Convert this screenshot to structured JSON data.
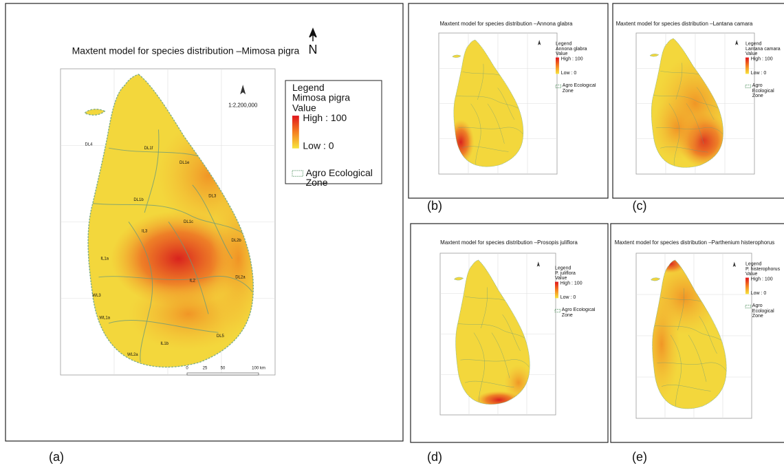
{
  "panels": [
    {
      "label": "(a)",
      "title": "Maxtent model for species distribution –Mimosa pigra",
      "north": "N",
      "scale": "1:2,200,000",
      "legend": {
        "heading": "Legend",
        "species": "Mimosa pigra",
        "value": "Value",
        "high": "High : 100",
        "low": "Low : 0",
        "zone": "Agro Ecological Zone"
      },
      "scale_bar": [
        "0",
        "25",
        "50",
        "100 km"
      ],
      "zones": [
        "DL1e",
        "DL1f",
        "DL1b",
        "DL1c",
        "DL2b",
        "DL2a",
        "DL3",
        "DL4",
        "IL3",
        "IL1a",
        "IL2",
        "WL3",
        "WL1a",
        "WL2a",
        "DL5",
        "IL1b"
      ]
    },
    {
      "label": "(b)",
      "title": "Maxtent model for species distribution –Annona glabra",
      "legend": {
        "heading": "Legend",
        "species": "Annona glabra",
        "value": "Value",
        "high": "High : 100",
        "low": "Low : 0",
        "zone": "Agro Ecological Zone"
      }
    },
    {
      "label": "(c)",
      "title": "Maxtent model for species distribution –Lantana camara",
      "legend": {
        "heading": "Legend",
        "species": "Lantana camara",
        "value": "Value",
        "high": "High : 100",
        "low": "Low : 0",
        "zone": "Agro Ecological Zone"
      }
    },
    {
      "label": "(d)",
      "title": "Maxtent model for species distribution –Prosopis juliflora",
      "legend": {
        "heading": "Legend",
        "species": "P. juliflora",
        "value": "Value",
        "high": "High : 100",
        "low": "Low : 0",
        "zone": "Agro Ecological Zone"
      }
    },
    {
      "label": "(e)",
      "title": "Maxtent model for species distribution –Parthenium histerophorus",
      "legend": {
        "heading": "Legend",
        "species": "P. histerophorus",
        "value": "Value",
        "high": "High : 100",
        "low": "Low : 0",
        "zone": "Agro Ecological Zone"
      }
    }
  ]
}
